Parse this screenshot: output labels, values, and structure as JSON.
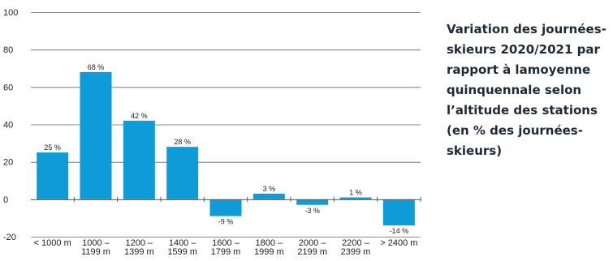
{
  "colors": {
    "bar": "#0e9bd8",
    "axis": "#555555",
    "grid": "#666666",
    "text": "#222222",
    "title": "#1f2a36"
  },
  "chart_data": {
    "type": "bar",
    "title": "Variation des journées-skieurs 2020/2021 par rapport à lamoyenne quinquennale selon l’altitude des stations (en % des journées-skieurs)",
    "xlabel": "",
    "ylabel": "",
    "ylim": [
      -20,
      100
    ],
    "yticks": [
      -20,
      0,
      20,
      40,
      60,
      80,
      100
    ],
    "grid": true,
    "categories": [
      [
        "< 1000 m"
      ],
      [
        "1000 –",
        "1199 m"
      ],
      [
        "1200 –",
        "1399 m"
      ],
      [
        "1400 –",
        "1599 m"
      ],
      [
        "1600 –",
        "1799 m"
      ],
      [
        "1800 –",
        "1999 m"
      ],
      [
        "2000 –",
        "2199 m"
      ],
      [
        "2200 –",
        "2399 m"
      ],
      [
        "> 2400 m"
      ]
    ],
    "values": [
      25,
      68,
      42,
      28,
      -9,
      3,
      -3,
      1,
      -14
    ],
    "data_labels": [
      "25 %",
      "68 %",
      "42 %",
      "28 %",
      "-9 %",
      "3 %",
      "-3 %",
      "1 %",
      "-14 %"
    ]
  }
}
